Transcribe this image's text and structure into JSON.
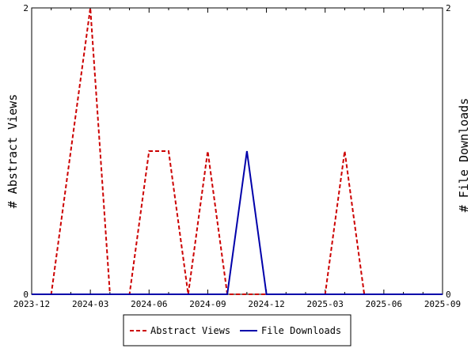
{
  "chart_data": {
    "type": "line",
    "title": "",
    "xlabel": "",
    "ylabel": "# Abstract Views",
    "y2label": "# File Downloads",
    "x_ticks": [
      "2023-12",
      "2024-03",
      "2024-06",
      "2024-09",
      "2024-12",
      "2025-03",
      "2025-06",
      "2025-09"
    ],
    "x_months": [
      "2023-12",
      "2024-01",
      "2024-02",
      "2024-03",
      "2024-04",
      "2024-05",
      "2024-06",
      "2024-07",
      "2024-08",
      "2024-09",
      "2024-10",
      "2024-11",
      "2024-12",
      "2025-01",
      "2025-02",
      "2025-03",
      "2025-04",
      "2025-05",
      "2025-06",
      "2025-07",
      "2025-08",
      "2025-09"
    ],
    "ylim": [
      0,
      2
    ],
    "y2lim": [
      0,
      2
    ],
    "y_ticks": [
      "0",
      "2"
    ],
    "y2_ticks": [
      "0",
      "2"
    ],
    "grid": false,
    "legend_position": "bottom",
    "series": [
      {
        "name": "Abstract Views",
        "axis": "left",
        "color": "#cc0000",
        "dash": "dashed",
        "values": [
          0,
          0,
          1,
          2,
          0,
          0,
          1,
          1,
          0,
          1,
          0,
          0,
          0,
          0,
          0,
          0,
          1,
          0,
          0,
          0,
          0,
          0
        ]
      },
      {
        "name": "File Downloads",
        "axis": "right",
        "color": "#0000aa",
        "dash": "solid",
        "values": [
          0,
          0,
          0,
          0,
          0,
          0,
          0,
          0,
          0,
          0,
          0,
          1,
          0,
          0,
          0,
          0,
          0,
          0,
          0,
          0,
          0,
          0
        ]
      }
    ]
  }
}
